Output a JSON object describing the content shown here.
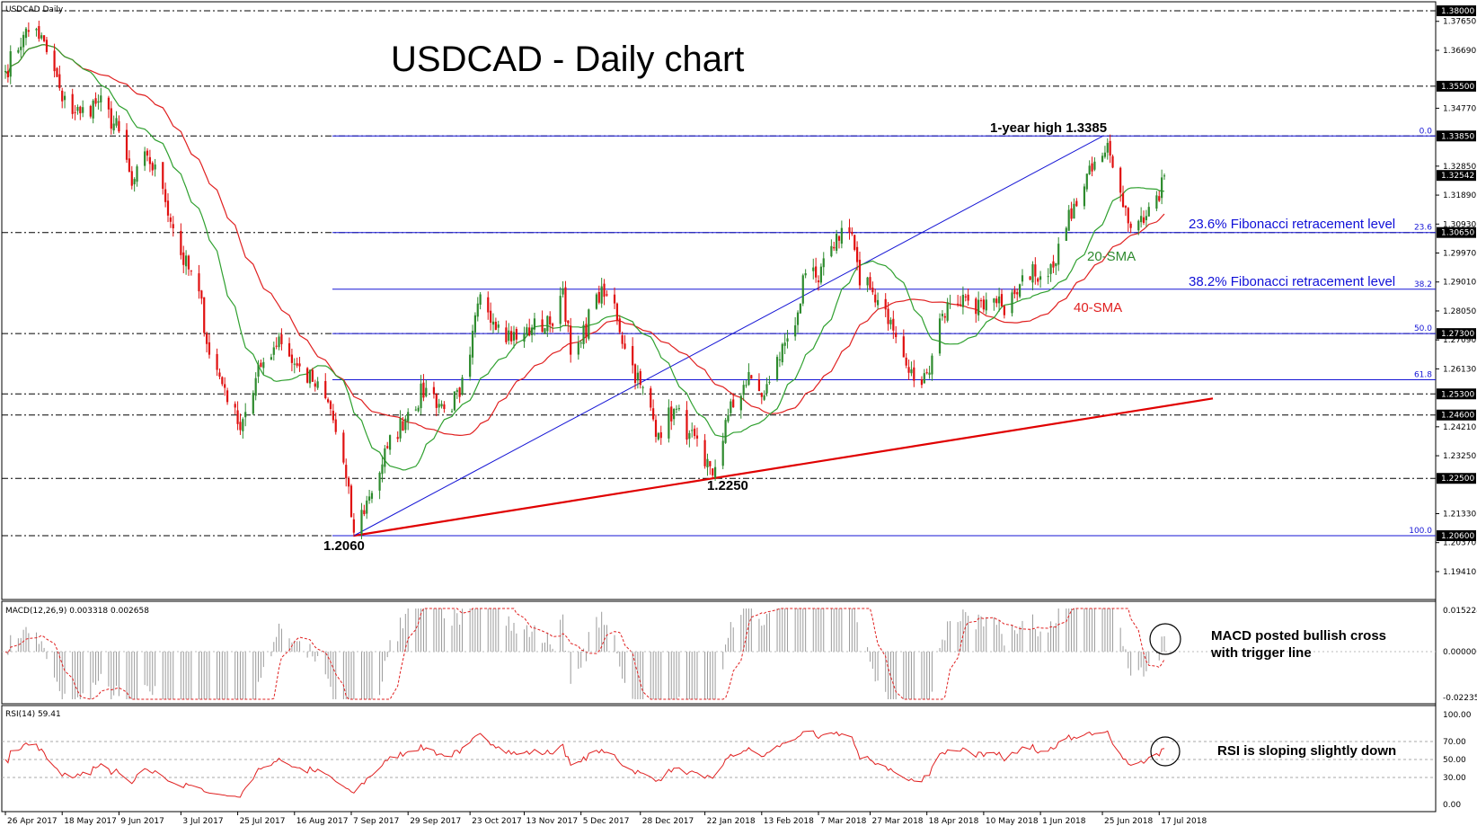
{
  "chart_title": "USDCAD - Daily chart",
  "instrument_label": "USDCAD Daily",
  "colors": {
    "bull_candle": "#2e8b2e",
    "bear_candle": "#e01010",
    "sma20": "#2fa02f",
    "sma40": "#e02020",
    "fib_lines": "#1515d5",
    "trendline_red": "#e00000",
    "trendline_blue": "#1515d5",
    "level_badge": "#000000"
  },
  "price_axis": {
    "ticks": [
      "1.37650",
      "1.36690",
      "1.34770",
      "1.32850",
      "1.31890",
      "1.30930",
      "1.29970",
      "1.29010",
      "1.28050",
      "1.27090",
      "1.26130",
      "1.24210",
      "1.23250",
      "1.21330",
      "1.20370",
      "1.19410"
    ],
    "badges": [
      "1.38000",
      "1.35500",
      "1.33850",
      "1.32542",
      "1.30650",
      "1.27300",
      "1.25300",
      "1.24600",
      "1.22500",
      "1.20600"
    ]
  },
  "date_axis": {
    "labels": [
      "26 Apr 2017",
      "18 May 2017",
      "9 Jun 2017",
      "3 Jul 2017",
      "25 Jul 2017",
      "16 Aug 2017",
      "7 Sep 2017",
      "29 Sep 2017",
      "23 Oct 2017",
      "13 Nov 2017",
      "5 Dec 2017",
      "28 Dec 2017",
      "22 Jan 2018",
      "13 Feb 2018",
      "7 Mar 2018",
      "27 Mar 2018",
      "18 Apr 2018",
      "10 May 2018",
      "1 Jun 2018",
      "25 Jun 2018",
      "17 Jul 2018"
    ]
  },
  "fibonacci": {
    "levels": [
      "0.0",
      "23.6",
      "38.2",
      "50.0",
      "61.8",
      "100.0"
    ],
    "label_236": "23.6% Fibonacci retracement level",
    "label_382": "38.2% Fibonacci retracement level"
  },
  "annotations": {
    "year_high": "1-year high 1.3385",
    "low_1": "1.2060",
    "low_2": "1.2250",
    "sma20": "20-SMA",
    "sma40": "40-SMA",
    "macd_note_1": "MACD posted bullish cross",
    "macd_note_2": "with trigger line",
    "rsi_note": "RSI is sloping slightly down"
  },
  "macd_panel": {
    "header": "MACD(12,26,9) 0.003318 0.002658",
    "ticks": [
      "0.015224",
      "0.000000",
      "-0.022356"
    ]
  },
  "rsi_panel": {
    "header": "RSI(14) 59.41",
    "ticks": [
      "100.00",
      "70.00",
      "50.00",
      "30.00",
      "0.00"
    ]
  },
  "chart_data": {
    "type": "candlestick",
    "title": "USDCAD - Daily chart",
    "x_range": [
      "26 Apr 2017",
      "19 Jul 2018"
    ],
    "ylim": [
      1.189,
      1.383
    ],
    "series": [
      {
        "name": "20-SMA"
      },
      {
        "name": "40-SMA"
      }
    ],
    "anchors": [
      {
        "date": "26 Apr 2017",
        "close": 1.36
      },
      {
        "date": "3 May 2017",
        "close": 1.372
      },
      {
        "date": "8 May 2017",
        "close": 1.374
      },
      {
        "date": "15 May 2017",
        "close": 1.36
      },
      {
        "date": "18 May 2017",
        "close": 1.35
      },
      {
        "date": "25 May 2017",
        "close": 1.346
      },
      {
        "date": "1 Jun 2017",
        "close": 1.35
      },
      {
        "date": "9 Jun 2017",
        "close": 1.34
      },
      {
        "date": "14 Jun 2017",
        "close": 1.322
      },
      {
        "date": "20 Jun 2017",
        "close": 1.332
      },
      {
        "date": "26 Jun 2017",
        "close": 1.321
      },
      {
        "date": "3 Jul 2017",
        "close": 1.299
      },
      {
        "date": "10 Jul 2017",
        "close": 1.287
      },
      {
        "date": "14 Jul 2017",
        "close": 1.266
      },
      {
        "date": "20 Jul 2017",
        "close": 1.255
      },
      {
        "date": "25 Jul 2017",
        "close": 1.243
      },
      {
        "date": "28 Jul 2017",
        "close": 1.247
      },
      {
        "date": "3 Aug 2017",
        "close": 1.262
      },
      {
        "date": "10 Aug 2017",
        "close": 1.272
      },
      {
        "date": "16 Aug 2017",
        "close": 1.263
      },
      {
        "date": "23 Aug 2017",
        "close": 1.257
      },
      {
        "date": "30 Aug 2017",
        "close": 1.248
      },
      {
        "date": "5 Sep 2017",
        "close": 1.225
      },
      {
        "date": "8 Sep 2017",
        "close": 1.207
      },
      {
        "date": "14 Sep 2017",
        "close": 1.219
      },
      {
        "date": "21 Sep 2017",
        "close": 1.235
      },
      {
        "date": "29 Sep 2017",
        "close": 1.247
      },
      {
        "date": "6 Oct 2017",
        "close": 1.255
      },
      {
        "date": "13 Oct 2017",
        "close": 1.248
      },
      {
        "date": "19 Oct 2017",
        "close": 1.252
      },
      {
        "date": "23 Oct 2017",
        "close": 1.266
      },
      {
        "date": "27 Oct 2017",
        "close": 1.286
      },
      {
        "date": "3 Nov 2017",
        "close": 1.276
      },
      {
        "date": "10 Nov 2017",
        "close": 1.271
      },
      {
        "date": "16 Nov 2017",
        "close": 1.275
      },
      {
        "date": "23 Nov 2017",
        "close": 1.276
      },
      {
        "date": "28 Nov 2017",
        "close": 1.288
      },
      {
        "date": "1 Dec 2017",
        "close": 1.266
      },
      {
        "date": "5 Dec 2017",
        "close": 1.27
      },
      {
        "date": "11 Dec 2017",
        "close": 1.286
      },
      {
        "date": "18 Dec 2017",
        "close": 1.283
      },
      {
        "date": "22 Dec 2017",
        "close": 1.268
      },
      {
        "date": "28 Dec 2017",
        "close": 1.256
      },
      {
        "date": "4 Jan 2018",
        "close": 1.24
      },
      {
        "date": "10 Jan 2018",
        "close": 1.248
      },
      {
        "date": "16 Jan 2018",
        "close": 1.24
      },
      {
        "date": "22 Jan 2018",
        "close": 1.229
      },
      {
        "date": "25 Jan 2018",
        "close": 1.226
      },
      {
        "date": "31 Jan 2018",
        "close": 1.246
      },
      {
        "date": "6 Feb 2018",
        "close": 1.256
      },
      {
        "date": "9 Feb 2018",
        "close": 1.258
      },
      {
        "date": "13 Feb 2018",
        "close": 1.252
      },
      {
        "date": "16 Feb 2018",
        "close": 1.257
      },
      {
        "date": "22 Feb 2018",
        "close": 1.27
      },
      {
        "date": "27 Feb 2018",
        "close": 1.28
      },
      {
        "date": "2 Mar 2018",
        "close": 1.293
      },
      {
        "date": "7 Mar 2018",
        "close": 1.29
      },
      {
        "date": "12 Mar 2018",
        "close": 1.302
      },
      {
        "date": "16 Mar 2018",
        "close": 1.308
      },
      {
        "date": "20 Mar 2018",
        "close": 1.306
      },
      {
        "date": "23 Mar 2018",
        "close": 1.289
      },
      {
        "date": "27 Mar 2018",
        "close": 1.288
      },
      {
        "date": "2 Apr 2018",
        "close": 1.281
      },
      {
        "date": "5 Apr 2018",
        "close": 1.274
      },
      {
        "date": "11 Apr 2018",
        "close": 1.26
      },
      {
        "date": "16 Apr 2018",
        "close": 1.256
      },
      {
        "date": "18 Apr 2018",
        "close": 1.26
      },
      {
        "date": "23 Apr 2018",
        "close": 1.278
      },
      {
        "date": "27 Apr 2018",
        "close": 1.283
      },
      {
        "date": "3 May 2018",
        "close": 1.285
      },
      {
        "date": "10 May 2018",
        "close": 1.281
      },
      {
        "date": "17 May 2018",
        "close": 1.282
      },
      {
        "date": "23 May 2018",
        "close": 1.286
      },
      {
        "date": "29 May 2018",
        "close": 1.296
      },
      {
        "date": "1 Jun 2018",
        "close": 1.292
      },
      {
        "date": "5 Jun 2018",
        "close": 1.296
      },
      {
        "date": "11 Jun 2018",
        "close": 1.308
      },
      {
        "date": "14 Jun 2018",
        "close": 1.316
      },
      {
        "date": "19 Jun 2018",
        "close": 1.326
      },
      {
        "date": "22 Jun 2018",
        "close": 1.33
      },
      {
        "date": "26 Jun 2018",
        "close": 1.333
      },
      {
        "date": "28 Jun 2018",
        "close": 1.332
      },
      {
        "date": "3 Jul 2018",
        "close": 1.315
      },
      {
        "date": "6 Jul 2018",
        "close": 1.308
      },
      {
        "date": "10 Jul 2018",
        "close": 1.312
      },
      {
        "date": "13 Jul 2018",
        "close": 1.315
      },
      {
        "date": "17 Jul 2018",
        "close": 1.317
      },
      {
        "date": "19 Jul 2018",
        "close": 1.3254
      }
    ],
    "horizontal_levels": [
      1.38,
      1.355,
      1.3385,
      1.3065,
      1.273,
      1.253,
      1.246,
      1.225,
      1.206
    ],
    "fibonacci_prices": {
      "0.0": 1.3385,
      "23.6": 1.3065,
      "38.2": 1.2877,
      "50.0": 1.273,
      "61.8": 1.2577,
      "100.0": 1.206
    },
    "last_close": 1.32542,
    "macd": {
      "macd": 0.003318,
      "signal": 0.002658
    },
    "rsi": 59.41
  }
}
